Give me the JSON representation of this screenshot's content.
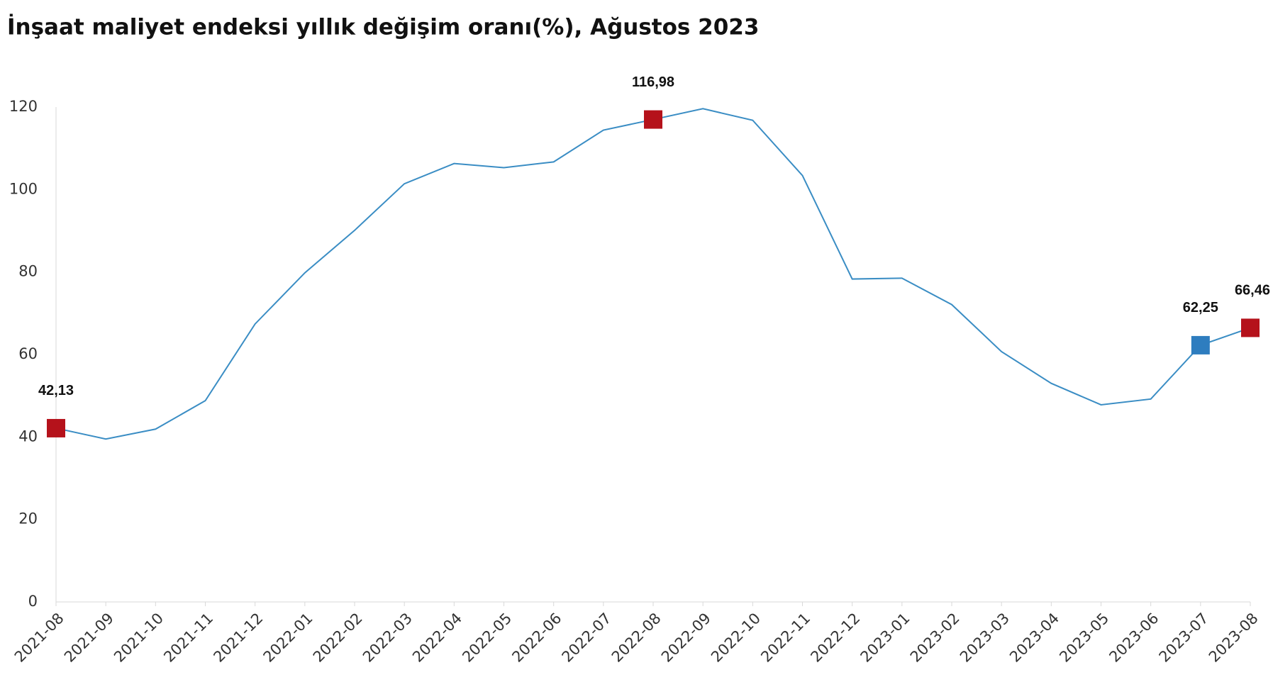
{
  "chart_data": {
    "type": "line",
    "title": "İnşaat maliyet endeksi yıllık değişim oranı(%), Ağustos 2023",
    "categories": [
      "2021-08",
      "2021-09",
      "2021-10",
      "2021-11",
      "2021-12",
      "2022-01",
      "2022-02",
      "2022-03",
      "2022-04",
      "2022-05",
      "2022-06",
      "2022-07",
      "2022-08",
      "2022-09",
      "2022-10",
      "2022-11",
      "2022-12",
      "2023-01",
      "2023-02",
      "2023-03",
      "2023-04",
      "2023-05",
      "2023-06",
      "2023-07",
      "2023-08"
    ],
    "series": [
      {
        "color": "#3a8dc4",
        "values": [
          42.13,
          39.5,
          41.9,
          48.8,
          67.4,
          79.8,
          90.1,
          101.4,
          106.3,
          105.3,
          106.7,
          114.4,
          116.98,
          119.6,
          116.8,
          103.4,
          78.3,
          78.5,
          72.1,
          60.7,
          53.0,
          47.8,
          49.2,
          62.25,
          66.46
        ],
        "value_labels": [
          "42,13",
          null,
          null,
          null,
          null,
          null,
          null,
          null,
          null,
          null,
          null,
          null,
          "116,98",
          null,
          null,
          null,
          null,
          null,
          null,
          null,
          null,
          null,
          null,
          "62,25",
          "66,46"
        ],
        "marker_colors": [
          "#b5121b",
          null,
          null,
          null,
          null,
          null,
          null,
          null,
          null,
          null,
          null,
          null,
          "#b5121b",
          null,
          null,
          null,
          null,
          null,
          null,
          null,
          null,
          null,
          null,
          "#2e7dbf",
          "#b5121b"
        ]
      }
    ],
    "ylim": [
      0,
      120
    ],
    "yticks": [
      0,
      20,
      40,
      60,
      80,
      100,
      120
    ],
    "grid": false
  }
}
